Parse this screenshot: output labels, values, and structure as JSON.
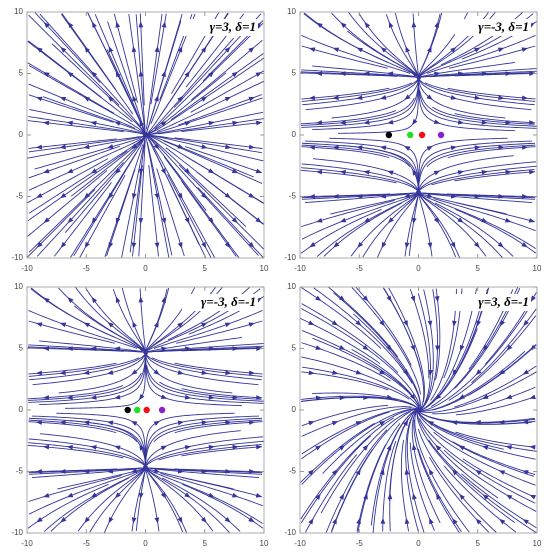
{
  "chart_data": [
    {
      "type": "stream",
      "annotation": "γ=3, δ=1",
      "xlim": [
        -10,
        10
      ],
      "ylim": [
        -10,
        10
      ],
      "xticks": [
        -10,
        -5,
        0,
        5,
        10
      ],
      "yticks": [
        -10,
        -5,
        0,
        5,
        10
      ],
      "color": "#35359a"
    },
    {
      "type": "stream",
      "annotation": "γ=-3, δ=1",
      "xlim": [
        -10,
        10
      ],
      "ylim": [
        -10,
        10
      ],
      "xticks": [
        -10,
        -5,
        0,
        5,
        10
      ],
      "yticks": [
        -10,
        -5,
        0,
        5,
        10
      ],
      "color": "#35359a",
      "points": {
        "x": [
          -2.5,
          -0.7,
          0.3,
          1.9
        ],
        "y": [
          0,
          0,
          0,
          0
        ],
        "colors": [
          "#000000",
          "#22dd22",
          "#ee1111",
          "#8822cc"
        ]
      }
    },
    {
      "type": "stream",
      "annotation": "γ=-3, δ=-1",
      "xlim": [
        -10,
        10
      ],
      "ylim": [
        -10,
        10
      ],
      "xticks": [
        -10,
        -5,
        0,
        5,
        10
      ],
      "yticks": [
        -10,
        -5,
        0,
        5,
        10
      ],
      "color": "#35359a",
      "points": {
        "x": [
          -1.5,
          -0.7,
          0.1,
          1.4
        ],
        "y": [
          0,
          0,
          0,
          0
        ],
        "colors": [
          "#000000",
          "#22dd22",
          "#ee1111",
          "#8822cc"
        ]
      }
    },
    {
      "type": "stream",
      "annotation": "γ=3, δ=-1",
      "xlim": [
        -10,
        10
      ],
      "ylim": [
        -10,
        10
      ],
      "xticks": [
        -10,
        -5,
        0,
        5,
        10
      ],
      "yticks": [
        -10,
        -5,
        0,
        5,
        10
      ],
      "color": "#35359a"
    }
  ]
}
